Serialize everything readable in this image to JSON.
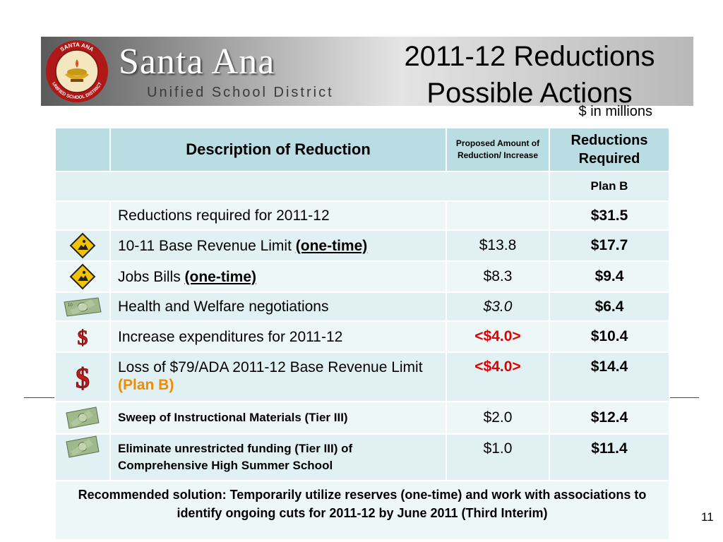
{
  "header": {
    "seal_text_top": "SANTA ANA",
    "seal_text_bottom": "UNIFIED SCHOOL DISTRICT",
    "logo_name": "Santa Ana",
    "logo_subtitle": "Unified School District",
    "title_line1": "2011-12 Reductions",
    "title_line2": "Possible Actions",
    "units": "$ in millions"
  },
  "table": {
    "headers": {
      "description": "Description of Reduction",
      "proposed": "Proposed Amount of Reduction/ Increase",
      "required": "Reductions Required"
    },
    "plan_label": "Plan B",
    "rows": [
      {
        "icon": "none",
        "description": "Reductions required for 2011-12",
        "amount": "",
        "required": "$31.5"
      },
      {
        "icon": "caution-sign-icon",
        "description": "10-11 Base Revenue Limit ",
        "emphasis": "(one-time)",
        "amount": "$13.8",
        "required": "$17.7"
      },
      {
        "icon": "caution-sign-icon",
        "description": "Jobs Bills  ",
        "emphasis": "(one-time)",
        "amount": "$8.3",
        "required": "$9.4"
      },
      {
        "icon": "money-bill-icon",
        "description": "Health and Welfare negotiations",
        "amount": "$3.0",
        "required": "$6.4"
      },
      {
        "icon": "dollar-sign-icon",
        "description": "Increase expenditures for 2011-12",
        "amount": "<$4.0>",
        "required": "$10.4"
      },
      {
        "icon": "dollar-sign-icon",
        "description": "Loss of $79/ADA 2011-12 Base Revenue Limit ",
        "emphasis": "(Plan B)",
        "amount": "<$4.0>",
        "required": "$14.4"
      },
      {
        "icon": "money-bill-icon",
        "description": "Sweep of Instructional Materials (Tier III)",
        "amount": "$2.0",
        "required": "$12.4"
      },
      {
        "icon": "money-bill-icon",
        "description": "Eliminate unrestricted funding (Tier III) of Comprehensive High Summer School",
        "amount": "$1.0",
        "required": "$11.4"
      }
    ],
    "recommendation": "Recommended solution: Temporarily utilize reserves (one-time) and work with associations to identify ongoing cuts for 2011-12 by June 2011 (Third Interim)"
  },
  "page_number": "11",
  "colors": {
    "header_row": "#b9dde3",
    "row_even": "#e1f1f3",
    "row_odd": "#eef7f8",
    "required_red": "#e00000",
    "plan_orange": "#e8a400",
    "recommendation_blue": "#1a1ae0"
  }
}
